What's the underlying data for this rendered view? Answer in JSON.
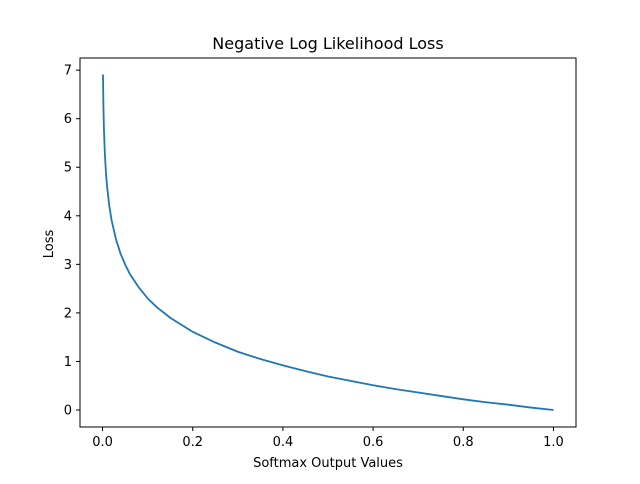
{
  "chart_data": {
    "type": "line",
    "title": "Negative Log Likelihood Loss",
    "xlabel": "Softmax Output Values",
    "ylabel": "Loss",
    "xlim": [
      -0.05,
      1.05
    ],
    "ylim": [
      -0.35,
      7.25
    ],
    "x_ticks": [
      0.0,
      0.2,
      0.4,
      0.6,
      0.8,
      1.0
    ],
    "x_tick_labels": [
      "0.0",
      "0.2",
      "0.4",
      "0.6",
      "0.8",
      "1.0"
    ],
    "y_ticks": [
      0,
      1,
      2,
      3,
      4,
      5,
      6,
      7
    ],
    "y_tick_labels": [
      "0",
      "1",
      "2",
      "3",
      "4",
      "5",
      "6",
      "7"
    ],
    "grid": false,
    "legend": "none",
    "series": [
      {
        "color": "#1f77b4",
        "x": [
          0.001,
          0.002,
          0.003,
          0.005,
          0.0075,
          0.01,
          0.015,
          0.02,
          0.03,
          0.04,
          0.05,
          0.06,
          0.08,
          0.1,
          0.12,
          0.15,
          0.2,
          0.25,
          0.3,
          0.35,
          0.4,
          0.45,
          0.5,
          0.55,
          0.6,
          0.65,
          0.7,
          0.75,
          0.8,
          0.85,
          0.9,
          0.95,
          1.0
        ],
        "y": [
          6.91,
          6.21,
          5.81,
          5.3,
          4.89,
          4.61,
          4.2,
          3.91,
          3.51,
          3.22,
          3.0,
          2.81,
          2.53,
          2.3,
          2.12,
          1.9,
          1.61,
          1.39,
          1.2,
          1.05,
          0.92,
          0.8,
          0.69,
          0.6,
          0.51,
          0.43,
          0.36,
          0.29,
          0.22,
          0.16,
          0.11,
          0.05,
          0.0
        ]
      }
    ]
  }
}
